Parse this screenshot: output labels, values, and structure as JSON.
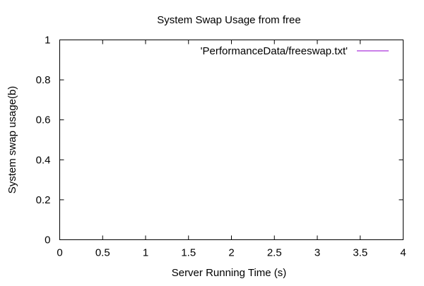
{
  "chart_data": {
    "type": "line",
    "title": "System Swap Usage from free",
    "xlabel": "Server Running Time (s)",
    "ylabel": "System swap usage(b)",
    "xlim": [
      0,
      4
    ],
    "ylim": [
      0,
      1
    ],
    "x_ticks": [
      0,
      0.5,
      1,
      1.5,
      2,
      2.5,
      3,
      3.5,
      4
    ],
    "x_tick_labels": [
      "0",
      "0.5",
      "1",
      "1.5",
      "2",
      "2.5",
      "3",
      "3.5",
      "4"
    ],
    "y_ticks": [
      0,
      0.2,
      0.4,
      0.6,
      0.8,
      1
    ],
    "y_tick_labels": [
      "0",
      "0.2",
      "0.4",
      "0.6",
      "0.8",
      "1"
    ],
    "grid": false,
    "legend_position": "top-right",
    "series": [
      {
        "name": "'PerformanceData/freeswap.txt'",
        "color": "#9400d3",
        "x": [],
        "y": []
      }
    ]
  }
}
